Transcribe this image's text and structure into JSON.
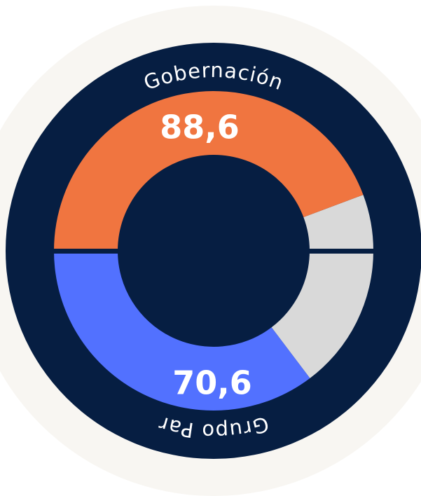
{
  "chart_data": {
    "type": "gauge",
    "series": [
      {
        "name": "Gobernación",
        "color": "#f07540",
        "values": [
          88.6
        ],
        "value_labels": [
          "88,6"
        ]
      },
      {
        "name": "Grupo Par",
        "color": "#5271ff",
        "values": [
          70.6
        ],
        "value_labels": [
          "70,6"
        ]
      }
    ],
    "ylim": [
      0,
      100
    ],
    "track_color": "#d9d9d9"
  }
}
